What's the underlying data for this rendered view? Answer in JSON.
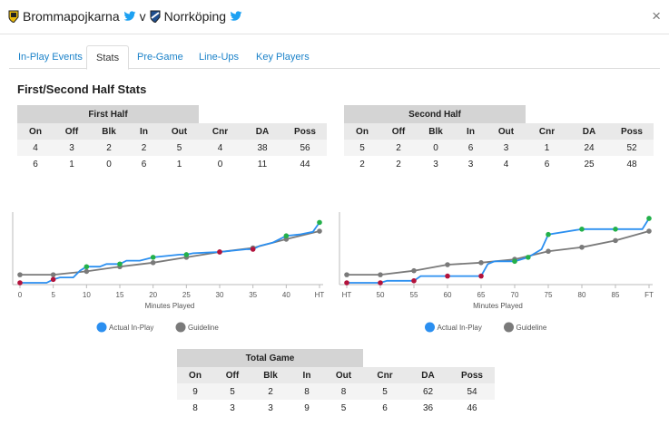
{
  "header": {
    "home_team": "Brommapojkarna",
    "separator": "v",
    "away_team": "Norrköping",
    "colors": {
      "twitter": "#1da1f2",
      "link": "#1b82c9"
    },
    "icons": [
      "home-badge-icon",
      "twitter-icon",
      "away-badge-icon",
      "twitter-icon",
      "close-icon"
    ],
    "close_label": "×"
  },
  "tabs": [
    {
      "label": "In-Play Events",
      "active": false
    },
    {
      "label": "Stats",
      "active": true
    },
    {
      "label": "Pre-Game",
      "active": false
    },
    {
      "label": "Line-Ups",
      "active": false
    },
    {
      "label": "Key Players",
      "active": false
    }
  ],
  "section_title": "First/Second Half Stats",
  "columns": [
    "On",
    "Off",
    "Blk",
    "In",
    "Out",
    "Cnr",
    "DA",
    "Poss"
  ],
  "first_half": {
    "title": "First Half",
    "rows": [
      [
        "4",
        "3",
        "2",
        "2",
        "5",
        "4",
        "38",
        "56"
      ],
      [
        "6",
        "1",
        "0",
        "6",
        "1",
        "0",
        "11",
        "44"
      ]
    ]
  },
  "second_half": {
    "title": "Second Half",
    "rows": [
      [
        "5",
        "2",
        "0",
        "6",
        "3",
        "1",
        "24",
        "52"
      ],
      [
        "2",
        "2",
        "3",
        "3",
        "4",
        "6",
        "25",
        "48"
      ]
    ]
  },
  "total_game": {
    "title": "Total Game",
    "rows": [
      [
        "9",
        "5",
        "2",
        "8",
        "8",
        "5",
        "62",
        "54"
      ],
      [
        "8",
        "3",
        "3",
        "9",
        "5",
        "6",
        "36",
        "46"
      ]
    ]
  },
  "chart_data": [
    {
      "type": "line",
      "xlabel": "Minutes Played",
      "x_ticks": [
        "0",
        "5",
        "10",
        "15",
        "20",
        "25",
        "30",
        "35",
        "40",
        "HT"
      ],
      "x_tick_values": [
        0,
        5,
        10,
        15,
        20,
        25,
        30,
        35,
        40,
        45
      ],
      "xlim": [
        0,
        45
      ],
      "ylim": [
        0,
        100
      ],
      "grid": false,
      "legend_position": "bottom",
      "colors": {
        "actual": "#2b8ff0",
        "guideline": "#7a7a7a",
        "green": "#23b04a",
        "red": "#b3123b"
      },
      "series": [
        {
          "name": "Actual In-Play",
          "x": [
            0,
            4,
            5,
            6,
            8,
            9,
            10,
            12,
            13,
            15,
            16,
            18,
            20,
            22,
            24,
            25,
            26,
            28,
            30,
            32,
            34,
            35,
            36,
            38,
            40,
            42,
            44,
            45
          ],
          "y": [
            0,
            0,
            5,
            8,
            8,
            18,
            24,
            24,
            28,
            28,
            33,
            33,
            38,
            40,
            42,
            42,
            44,
            45,
            46,
            48,
            50,
            50,
            55,
            60,
            70,
            72,
            76,
            90
          ]
        },
        {
          "name": "Guideline",
          "x": [
            0,
            5,
            10,
            15,
            20,
            25,
            30,
            35,
            40,
            45
          ],
          "y": [
            12,
            12,
            17,
            24,
            30,
            38,
            46,
            52,
            65,
            77
          ]
        }
      ],
      "events": [
        {
          "x": 0,
          "y": 0,
          "color": "red"
        },
        {
          "x": 5,
          "y": 5,
          "color": "red"
        },
        {
          "x": 10,
          "y": 24,
          "color": "green"
        },
        {
          "x": 15,
          "y": 28,
          "color": "green"
        },
        {
          "x": 20,
          "y": 38,
          "color": "green"
        },
        {
          "x": 25,
          "y": 42,
          "color": "green"
        },
        {
          "x": 30,
          "y": 46,
          "color": "red"
        },
        {
          "x": 35,
          "y": 50,
          "color": "red"
        },
        {
          "x": 40,
          "y": 70,
          "color": "green"
        },
        {
          "x": 45,
          "y": 90,
          "color": "green"
        }
      ],
      "legend": [
        "Actual In-Play",
        "Guideline"
      ]
    },
    {
      "type": "line",
      "xlabel": "Minutes Played",
      "x_ticks": [
        "HT",
        "50",
        "55",
        "60",
        "65",
        "70",
        "75",
        "80",
        "85",
        "FT"
      ],
      "x_tick_values": [
        45,
        50,
        55,
        60,
        65,
        70,
        75,
        80,
        85,
        90
      ],
      "xlim": [
        45,
        90
      ],
      "ylim": [
        0,
        100
      ],
      "grid": false,
      "legend_position": "bottom",
      "colors": {
        "actual": "#2b8ff0",
        "guideline": "#7a7a7a",
        "green": "#23b04a",
        "red": "#b3123b"
      },
      "series": [
        {
          "name": "Actual In-Play",
          "x": [
            45,
            50,
            51,
            55,
            56,
            60,
            65,
            66,
            67,
            70,
            72,
            74,
            75,
            80,
            85,
            89,
            90
          ],
          "y": [
            0,
            0,
            3,
            3,
            10,
            10,
            10,
            28,
            32,
            32,
            38,
            50,
            72,
            80,
            80,
            80,
            96
          ]
        },
        {
          "name": "Guideline",
          "x": [
            45,
            50,
            55,
            60,
            65,
            70,
            75,
            80,
            85,
            90
          ],
          "y": [
            12,
            12,
            18,
            27,
            30,
            35,
            47,
            53,
            63,
            77
          ]
        }
      ],
      "events": [
        {
          "x": 45,
          "y": 0,
          "color": "red"
        },
        {
          "x": 50,
          "y": 0,
          "color": "red"
        },
        {
          "x": 55,
          "y": 3,
          "color": "red"
        },
        {
          "x": 60,
          "y": 10,
          "color": "red"
        },
        {
          "x": 65,
          "y": 10,
          "color": "red"
        },
        {
          "x": 70,
          "y": 32,
          "color": "green"
        },
        {
          "x": 72,
          "y": 38,
          "color": "green"
        },
        {
          "x": 75,
          "y": 72,
          "color": "green"
        },
        {
          "x": 80,
          "y": 80,
          "color": "green"
        },
        {
          "x": 85,
          "y": 80,
          "color": "green"
        },
        {
          "x": 90,
          "y": 96,
          "color": "green"
        }
      ],
      "legend": [
        "Actual In-Play",
        "Guideline"
      ]
    }
  ]
}
